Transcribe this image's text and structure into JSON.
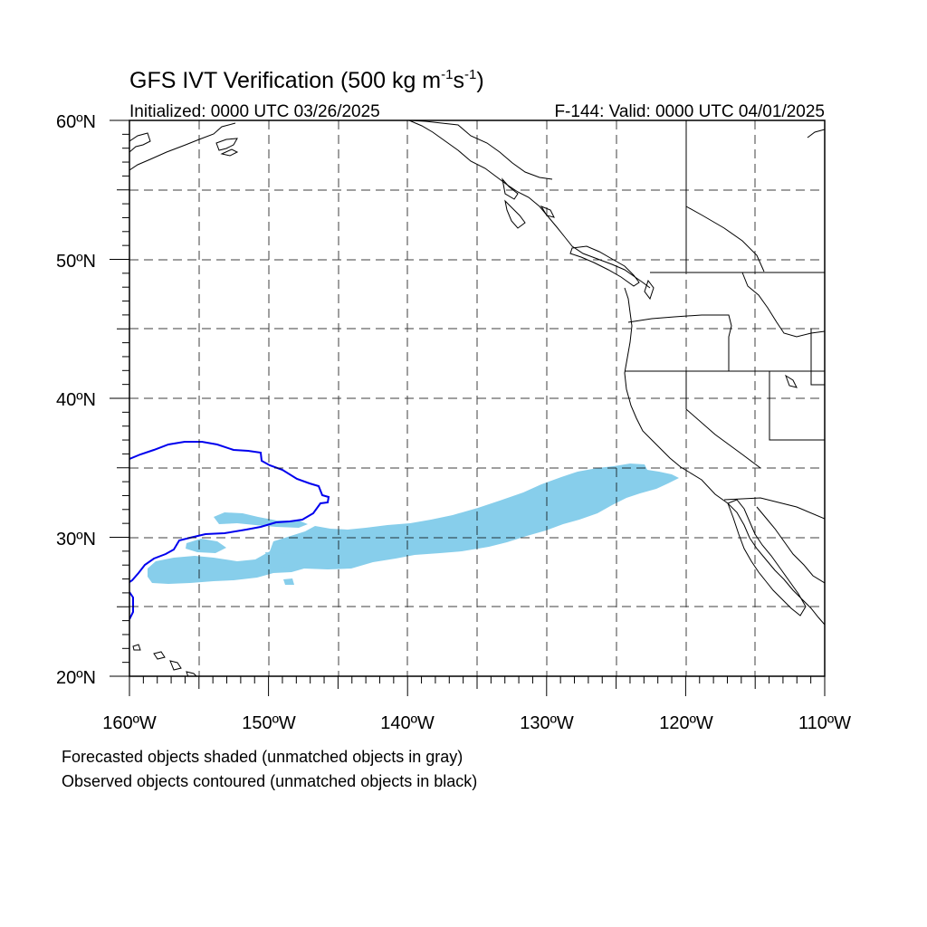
{
  "figure": {
    "title_main": "GFS IVT Verification (500 kg m",
    "title_exp1": "-1",
    "title_mid": "s",
    "title_exp2": "-1",
    "title_close": ")",
    "init_label": "Initialized: 0000 UTC 03/26/2025",
    "valid_label": "F-144: Valid: 0000 UTC 04/01/2025"
  },
  "map": {
    "region": "Northeast Pacific / western North America",
    "lon_range": [
      -160,
      -110
    ],
    "lat_range": [
      20,
      60
    ],
    "grid": "dashed every 5 degrees",
    "lat_labels": [
      "60ºN",
      "50ºN",
      "40ºN",
      "30ºN",
      "20ºN"
    ],
    "lon_labels": [
      "160ºW",
      "150ºW",
      "140ºW",
      "130ºW",
      "120ºW",
      "110ºW"
    ],
    "forecast_object": {
      "style": "shaded",
      "color": "#87ceeb",
      "description": "elongated IVT plume from ~158W,28N to ~120W,34N"
    },
    "observed_object": {
      "style": "contour",
      "color": "#0000ee",
      "description": "blue observed object outline west of 145W between ~24N and 37N"
    },
    "coastline_color": "#000000"
  },
  "legend": {
    "line1": "Forecasted objects shaded (unmatched objects in gray)",
    "line2": "Observed objects contoured (unmatched objects in black)"
  }
}
